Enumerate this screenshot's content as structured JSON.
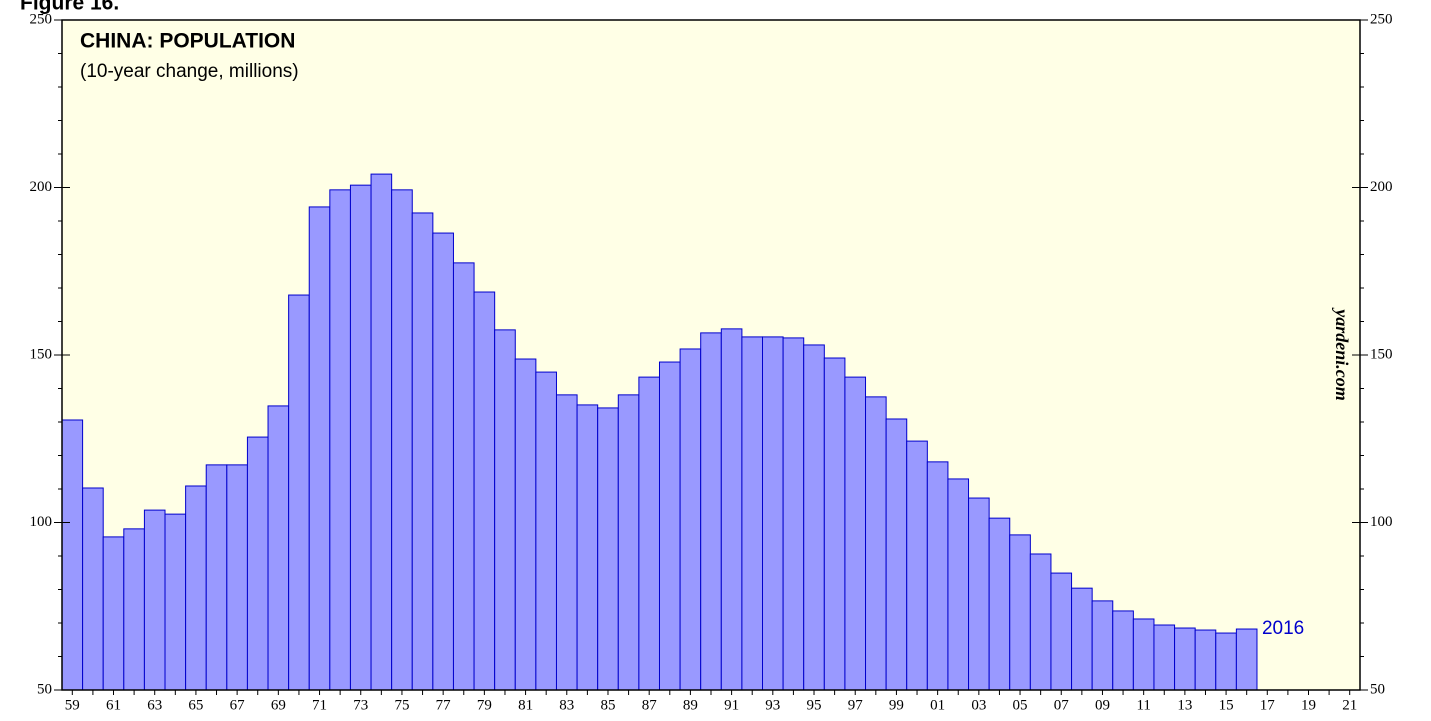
{
  "figure_label": "Figure 16.",
  "chart_data": {
    "type": "bar",
    "title": "CHINA: POPULATION",
    "subtitle": "(10-year change, millions)",
    "source": "yardeni.com",
    "annotation": "2016",
    "categories": [
      "59",
      null,
      "61",
      null,
      "63",
      null,
      "65",
      null,
      "67",
      null,
      "69",
      null,
      "71",
      null,
      "73",
      null,
      "75",
      null,
      "77",
      null,
      "79",
      null,
      "81",
      null,
      "83",
      null,
      "85",
      null,
      "87",
      null,
      "89",
      null,
      "91",
      null,
      "93",
      null,
      "95",
      null,
      "97",
      null,
      "99",
      null,
      "01",
      null,
      "03",
      null,
      "05",
      null,
      "07",
      null,
      "09",
      null,
      "11",
      null,
      "13",
      null,
      "15",
      null,
      "17",
      null,
      "19",
      null,
      "21"
    ],
    "values": [
      130.6,
      110.3,
      95.7,
      98.1,
      103.7,
      102.5,
      110.9,
      117.2,
      117.2,
      125.5,
      134.8,
      167.9,
      194.2,
      199.3,
      200.7,
      204.0,
      199.3,
      192.4,
      186.4,
      177.5,
      168.8,
      157.5,
      148.8,
      144.9,
      138.1,
      135.1,
      134.2,
      138.1,
      143.4,
      147.9,
      151.8,
      156.6,
      157.8,
      155.4,
      155.4,
      155.1,
      153.0,
      149.1,
      143.4,
      137.5,
      130.9,
      124.3,
      118.1,
      113.0,
      107.3,
      101.3,
      96.3,
      90.6,
      84.9,
      80.4,
      76.6,
      73.6,
      71.2,
      69.4,
      68.5,
      67.9,
      67.0,
      68.2,
      null,
      null,
      null,
      null,
      null
    ],
    "color": "#9999ff",
    "edge_color": "#0000cc",
    "ylim": [
      50,
      250
    ],
    "yticks": [
      50,
      100,
      150,
      200,
      250
    ],
    "yminorticks": [
      60,
      70,
      80,
      90,
      110,
      120,
      130,
      140,
      160,
      170,
      180,
      190,
      210,
      220,
      230,
      240
    ]
  }
}
